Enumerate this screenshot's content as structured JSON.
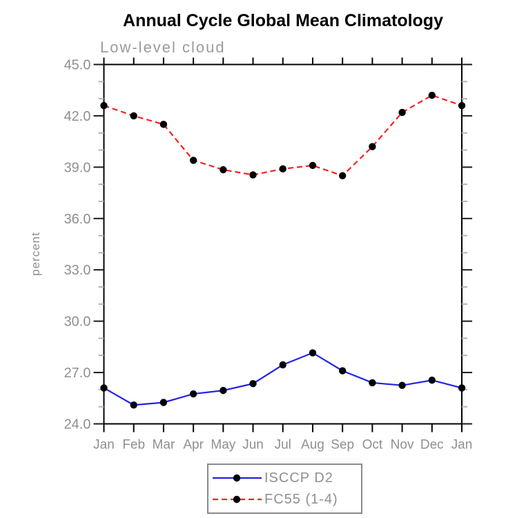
{
  "chart_data": {
    "type": "line",
    "title": "Annual Cycle Global Mean Climatology",
    "subtitle": "Low-level cloud",
    "ylabel": "percent",
    "categories": [
      "Jan",
      "Feb",
      "Mar",
      "Apr",
      "May",
      "Jun",
      "Jul",
      "Aug",
      "Sep",
      "Oct",
      "Nov",
      "Dec",
      "Jan"
    ],
    "ylim": [
      24.0,
      45.0
    ],
    "ytick_major_step": 3.0,
    "ytick_minor_step": 1.0,
    "ytick_labels": [
      "24.0",
      "27.0",
      "30.0",
      "33.0",
      "36.0",
      "39.0",
      "42.0",
      "45.0"
    ],
    "grid": false,
    "legend_position": "bottom-center",
    "series": [
      {
        "name": "ISCCP D2",
        "style": "solid",
        "color": "#2222e8",
        "marker": "filled-circle",
        "marker_color": "#000000",
        "values": [
          26.1,
          25.1,
          25.25,
          25.75,
          25.95,
          26.35,
          27.45,
          28.15,
          27.1,
          26.4,
          26.25,
          26.55,
          26.1
        ]
      },
      {
        "name": "FC55 (1-4)",
        "style": "dashed",
        "color": "#fa2020",
        "marker": "filled-circle",
        "marker_color": "#000000",
        "values": [
          42.6,
          42.0,
          41.5,
          39.4,
          38.85,
          38.55,
          38.9,
          39.1,
          38.5,
          40.2,
          42.2,
          43.2,
          42.6
        ]
      }
    ],
    "colors": {
      "axis": "#000000",
      "major_tick": "#1a1a1a",
      "minor_tick": "#b4b4b4",
      "tick_label": "#8f8f8f",
      "title": "#000000",
      "subtitle": "#9b9b9b",
      "legend_text": "#8f8f8f",
      "legend_border": "#8a8a8a",
      "background": "#ffffff"
    }
  }
}
